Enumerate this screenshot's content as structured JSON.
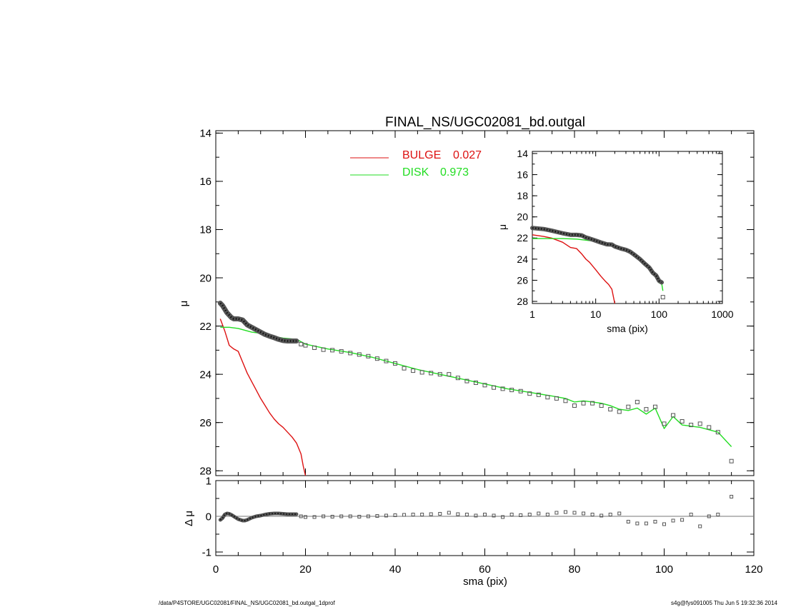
{
  "title": "FINAL_NS/UGC02081_bd.outgal",
  "footer": {
    "path": "/data/P4STORE/UGC02081/FINAL_NS/UGC02081_bd.outgal_1dprof",
    "stamp": "s4g@fys091005  Thu Jun  5 19:32:36 2014"
  },
  "colors": {
    "bulge": "#dd1111",
    "disk": "#22dd22",
    "data": "#000000",
    "marker": "#555555"
  },
  "chart_data": [
    {
      "id": "main-profile",
      "type": "line",
      "title": "FINAL_NS/UGC02081_bd.outgal",
      "xlabel": "",
      "ylabel": "μ",
      "xlim": [
        0,
        120
      ],
      "ylim": [
        28.2,
        13.9
      ],
      "y_inverted": true,
      "xticks": [
        0,
        20,
        40,
        60,
        80,
        100,
        120
      ],
      "yticks": [
        14,
        16,
        18,
        20,
        22,
        24,
        26,
        28
      ],
      "legend": {
        "placement": "top-center",
        "entries": [
          {
            "label": "BULGE",
            "value": "0.027",
            "color": "#dd1111"
          },
          {
            "label": "DISK",
            "value": "0.973",
            "color": "#22dd22"
          }
        ]
      },
      "series": [
        {
          "name": "BULGE",
          "color": "#dd1111",
          "x": [
            1,
            1.5,
            2,
            2.5,
            3,
            4,
            5,
            6,
            7,
            8,
            9,
            10,
            11,
            12,
            13,
            14,
            15,
            16,
            17,
            18,
            19,
            19.5,
            20
          ],
          "y": [
            21.7,
            21.95,
            22.2,
            22.5,
            22.8,
            22.95,
            23.05,
            23.5,
            23.95,
            24.3,
            24.65,
            25.0,
            25.3,
            25.6,
            25.85,
            26.05,
            26.2,
            26.4,
            26.6,
            26.85,
            27.3,
            27.8,
            28.2
          ]
        },
        {
          "name": "DISK",
          "color": "#22dd22",
          "x": [
            1,
            3,
            5,
            8,
            10,
            12,
            15,
            18,
            20,
            25,
            30,
            35,
            40,
            45,
            50,
            55,
            60,
            65,
            70,
            75,
            78,
            80,
            82,
            84,
            86,
            88,
            90,
            92,
            94,
            96,
            98,
            100,
            102,
            104,
            106,
            108,
            110,
            112,
            115
          ],
          "y": [
            22.05,
            22.05,
            22.1,
            22.25,
            22.3,
            22.4,
            22.5,
            22.55,
            22.75,
            22.95,
            23.1,
            23.3,
            23.55,
            23.8,
            24.0,
            24.2,
            24.4,
            24.6,
            24.75,
            24.9,
            25.0,
            25.15,
            25.1,
            25.15,
            25.2,
            25.3,
            25.45,
            25.5,
            25.4,
            25.65,
            25.4,
            26.25,
            25.75,
            26.1,
            26.15,
            26.2,
            26.3,
            26.4,
            27.0
          ]
        },
        {
          "name": "",
          "color": "#000000",
          "x": [
            1,
            1.5,
            2,
            2.5,
            3,
            3.5,
            4,
            4.5,
            5,
            6,
            7,
            8,
            9,
            10,
            11,
            12,
            13,
            14,
            15,
            16,
            17,
            18
          ],
          "y": [
            21.05,
            21.15,
            21.3,
            21.45,
            21.55,
            21.65,
            21.7,
            21.7,
            21.7,
            21.75,
            21.95,
            22.05,
            22.15,
            22.25,
            22.35,
            22.42,
            22.48,
            22.55,
            22.6,
            22.62,
            22.62,
            22.62
          ]
        },
        {
          "name": "",
          "color": "#555555",
          "marker": "open-square",
          "x": [
            19,
            20,
            22,
            24,
            26,
            28,
            30,
            32,
            34,
            36,
            38,
            40,
            42,
            44,
            46,
            48,
            50,
            52,
            54,
            56,
            58,
            60,
            62,
            64,
            66,
            68,
            70,
            72,
            74,
            76,
            78,
            80,
            82,
            84,
            86,
            88,
            90,
            92,
            94,
            96,
            98,
            100,
            102,
            104,
            106,
            108,
            110,
            112,
            115
          ],
          "y": [
            22.75,
            22.8,
            22.9,
            22.98,
            23.0,
            23.05,
            23.12,
            23.18,
            23.25,
            23.35,
            23.45,
            23.55,
            23.75,
            23.85,
            23.92,
            23.95,
            24.0,
            24.0,
            24.15,
            24.28,
            24.35,
            24.45,
            24.55,
            24.6,
            24.65,
            24.7,
            24.8,
            24.85,
            24.95,
            25.0,
            25.1,
            25.3,
            25.2,
            25.2,
            25.3,
            25.45,
            25.55,
            25.35,
            25.15,
            25.45,
            25.35,
            26.05,
            25.7,
            25.95,
            26.1,
            26.05,
            26.2,
            26.4,
            27.6
          ]
        }
      ]
    },
    {
      "id": "residuals",
      "type": "scatter",
      "xlabel": "sma (pix)",
      "ylabel": "Δ μ",
      "xlim": [
        0,
        120
      ],
      "ylim": [
        -1.1,
        1.0
      ],
      "xticks": [
        0,
        20,
        40,
        60,
        80,
        100,
        120
      ],
      "yticks": [
        -1,
        0,
        1
      ],
      "series": [
        {
          "name": "",
          "color": "#000000",
          "x": [
            1,
            1.5,
            2,
            2.5,
            3,
            3.5,
            4,
            4.5,
            5,
            5.5,
            6,
            6.5,
            7,
            7.5,
            8,
            9,
            10,
            11,
            12,
            13,
            14,
            15,
            16,
            17,
            18
          ],
          "y": [
            -0.1,
            -0.05,
            0.05,
            0.08,
            0.07,
            0.04,
            0.0,
            -0.04,
            -0.08,
            -0.1,
            -0.12,
            -0.12,
            -0.1,
            -0.07,
            -0.04,
            0.0,
            0.02,
            0.05,
            0.07,
            0.08,
            0.08,
            0.07,
            0.06,
            0.06,
            0.06
          ]
        },
        {
          "name": "",
          "color": "#555555",
          "marker": "open-square",
          "x": [
            19,
            20,
            22,
            24,
            26,
            28,
            30,
            32,
            34,
            36,
            38,
            40,
            42,
            44,
            46,
            48,
            50,
            52,
            54,
            56,
            58,
            60,
            62,
            64,
            66,
            68,
            70,
            72,
            74,
            76,
            78,
            80,
            82,
            84,
            86,
            88,
            90,
            92,
            94,
            96,
            98,
            100,
            102,
            104,
            106,
            108,
            110,
            112,
            115
          ],
          "y": [
            0.0,
            -0.02,
            -0.02,
            0.0,
            -0.01,
            0.0,
            0.0,
            -0.01,
            0.0,
            0.01,
            0.02,
            0.03,
            0.04,
            0.05,
            0.05,
            0.06,
            0.07,
            0.1,
            0.06,
            0.05,
            0.02,
            0.05,
            0.02,
            -0.02,
            0.05,
            0.03,
            0.05,
            0.08,
            0.05,
            0.1,
            0.12,
            0.1,
            0.08,
            0.05,
            0.02,
            0.05,
            0.08,
            -0.15,
            -0.2,
            -0.2,
            -0.15,
            -0.22,
            -0.12,
            -0.1,
            0.05,
            -0.28,
            0.0,
            0.05,
            0.55
          ]
        }
      ]
    },
    {
      "id": "inset-log",
      "type": "line",
      "xlabel": "sma (pix)",
      "ylabel": "μ",
      "xscale": "log",
      "xlim": [
        1,
        1000
      ],
      "ylim": [
        28.2,
        13.8
      ],
      "y_inverted": true,
      "xticks": [
        1,
        10,
        100,
        1000
      ],
      "yticks": [
        14,
        16,
        18,
        20,
        22,
        24,
        26,
        28
      ],
      "series": [
        {
          "name": "BULGE",
          "color": "#dd1111",
          "x": [
            1,
            1.5,
            2,
            3,
            4,
            5,
            6,
            7,
            8,
            10,
            12,
            14,
            16,
            18,
            20
          ],
          "y": [
            21.7,
            21.85,
            22.0,
            22.4,
            22.9,
            23.0,
            23.5,
            24.0,
            24.3,
            25.0,
            25.6,
            26.05,
            26.4,
            26.85,
            28.2
          ]
        },
        {
          "name": "DISK",
          "color": "#22dd22",
          "x": [
            1,
            2,
            3,
            5,
            8,
            10,
            15,
            20,
            30,
            40,
            50,
            60,
            70,
            80,
            90,
            100,
            110,
            115
          ],
          "y": [
            22.05,
            22.05,
            22.05,
            22.1,
            22.25,
            22.3,
            22.5,
            22.75,
            23.1,
            23.55,
            24.0,
            24.4,
            24.75,
            25.15,
            25.45,
            26.25,
            26.3,
            27.0
          ]
        },
        {
          "name": "",
          "color": "#000000",
          "x": [
            1,
            1.5,
            2,
            3,
            4,
            5,
            6,
            7,
            8,
            10,
            12,
            15,
            18,
            20,
            25,
            30,
            35,
            40,
            50,
            60,
            70,
            80,
            90,
            100,
            110
          ],
          "y": [
            21.05,
            21.15,
            21.3,
            21.55,
            21.7,
            21.7,
            21.75,
            21.95,
            22.05,
            22.25,
            22.42,
            22.6,
            22.62,
            22.8,
            23.0,
            23.12,
            23.3,
            23.55,
            24.0,
            24.45,
            24.8,
            25.3,
            25.55,
            26.05,
            26.2
          ]
        },
        {
          "name": "",
          "color": "#555555",
          "marker": "open-square",
          "x": [
            115
          ],
          "y": [
            27.6
          ]
        }
      ]
    }
  ]
}
